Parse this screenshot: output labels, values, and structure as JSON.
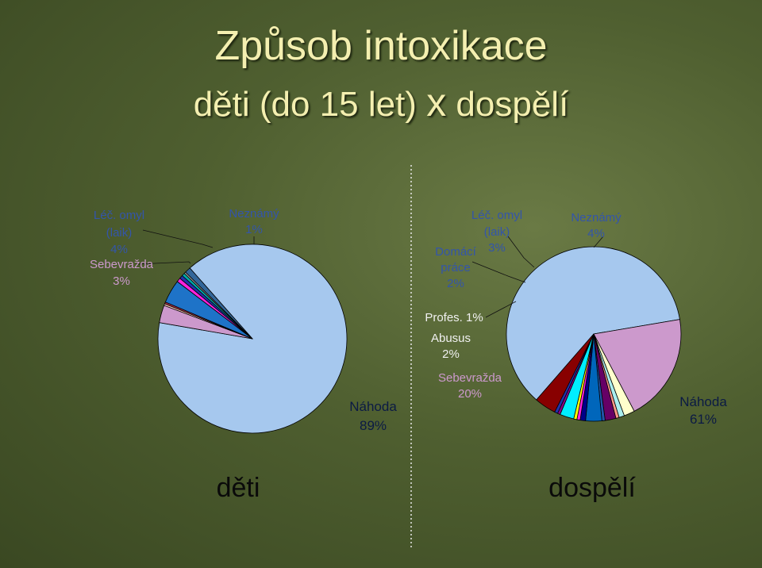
{
  "title": {
    "line1": "Způsob intoxikace",
    "line2_a": "děti (do 15 let) ",
    "line2_x": "x",
    "line2_b": " dospělí"
  },
  "chart_data": [
    {
      "type": "pie",
      "name": "děti",
      "slices": [
        {
          "label": "Náhoda",
          "value": 89,
          "color": "#a6c8ee"
        },
        {
          "label": "Sebevražda",
          "value": 3,
          "color": "#cc99cc"
        },
        {
          "label": "",
          "value": 0.3,
          "color": "#ffccbb"
        },
        {
          "label": "",
          "value": 0.3,
          "color": "#aa3344"
        },
        {
          "label": "Léč. omyl (laik)",
          "value": 4,
          "color": "#1e73c8"
        },
        {
          "label": "",
          "value": 0.7,
          "color": "#ff22dd"
        },
        {
          "label": "",
          "value": 0.6,
          "color": "#2233aa"
        },
        {
          "label": "",
          "value": 0.5,
          "color": "#00aaaa"
        },
        {
          "label": "",
          "value": 0.3,
          "color": "#999999"
        },
        {
          "label": "Neznámý",
          "value": 1,
          "color": "#336699"
        }
      ],
      "labels": {
        "lecomyl": [
          "Léč. omyl",
          "(laik)",
          "4%"
        ],
        "sebevrazda": [
          "Sebevražda",
          "3%"
        ],
        "neznamy": [
          "Neznámý",
          "1%"
        ],
        "nahoda": [
          "Náhoda",
          "89%"
        ]
      }
    },
    {
      "type": "pie",
      "name": "dospělí",
      "slices": [
        {
          "label": "Náhoda",
          "value": 61,
          "color": "#a6c8ee"
        },
        {
          "label": "Sebevražda",
          "value": 20,
          "color": "#cc99cc"
        },
        {
          "label": "Abusus",
          "value": 2,
          "color": "#ffffcc"
        },
        {
          "label": "Profes.",
          "value": 1,
          "color": "#aaeeee"
        },
        {
          "label": "",
          "value": 0.6,
          "color": "#ff9988"
        },
        {
          "label": "Domácí práce",
          "value": 2,
          "color": "#660066"
        },
        {
          "label": "",
          "value": 0.6,
          "color": "#2255aa"
        },
        {
          "label": "Léč. omyl (laik)",
          "value": 3,
          "color": "#0066bb"
        },
        {
          "label": "",
          "value": 1,
          "color": "#000088"
        },
        {
          "label": "",
          "value": 0.6,
          "color": "#ff22dd"
        },
        {
          "label": "",
          "value": 0.6,
          "color": "#ffff00"
        },
        {
          "label": "",
          "value": 2.6,
          "color": "#00eeff"
        },
        {
          "label": "",
          "value": 0.5,
          "color": "#880088"
        },
        {
          "label": "",
          "value": 0.6,
          "color": "#2233aa"
        },
        {
          "label": "Neznámý",
          "value": 4,
          "color": "#880000"
        }
      ],
      "labels": {
        "lecomyl": [
          "Léč. omyl",
          "(laik)",
          "3%"
        ],
        "domaci": [
          "Domácí",
          "práce",
          "2%"
        ],
        "neznamy": [
          "Neznámý",
          "4%"
        ],
        "profes": [
          "Profes. 1%"
        ],
        "abusus": [
          "Abusus",
          "2%"
        ],
        "sebevrazda": [
          "Sebevražda",
          "20%"
        ],
        "nahoda": [
          "Náhoda",
          "61%"
        ]
      }
    }
  ],
  "bottom_labels": {
    "left": "děti",
    "right": "dospělí"
  },
  "colors": {
    "title": "#f4efb0",
    "label_blue": "#3355aa",
    "label_dark": "#0b1a44",
    "label_white": "#f0f0f0",
    "label_pink": "#cc99cc"
  }
}
